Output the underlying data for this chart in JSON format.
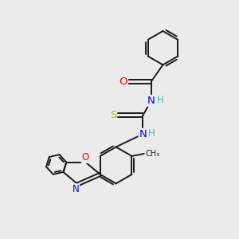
{
  "bg_color": "#ebebeb",
  "bond_color": "#1a1a1a",
  "bond_width": 1.4,
  "atom_colors": {
    "N": "#0000ee",
    "O": "#ee0000",
    "S": "#bbbb00",
    "H": "#44bbbb",
    "C": "#1a1a1a"
  },
  "font_size": 8.5,
  "fig_size": [
    3.0,
    3.0
  ],
  "dpi": 100
}
